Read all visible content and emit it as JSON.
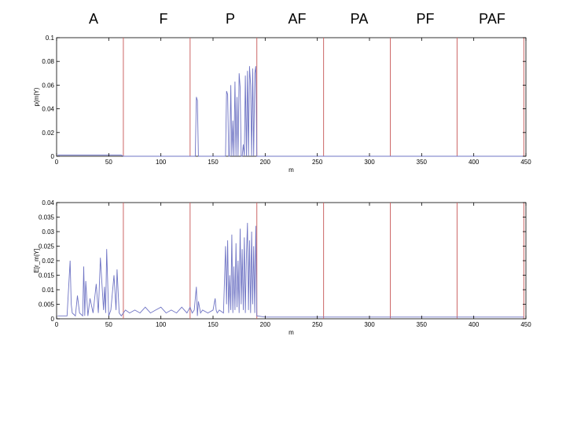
{
  "group_labels": [
    "A",
    "F",
    "P",
    "AF",
    "PA",
    "PF",
    "PAF"
  ],
  "chart_data": [
    {
      "type": "line",
      "xlabel": "m",
      "ylabel": "p(m|Y)",
      "xlim": [
        0,
        450
      ],
      "ylim": [
        0,
        0.1
      ],
      "xticks": [
        0,
        50,
        100,
        150,
        200,
        250,
        300,
        350,
        400,
        450
      ],
      "yticks": [
        0,
        0.02,
        0.04,
        0.06,
        0.08,
        0.1
      ],
      "ytick_labels": [
        "0",
        "0.02",
        "0.04",
        "0.06",
        "0.08",
        "0.1"
      ],
      "separators": [
        64,
        128,
        192,
        256,
        320,
        384,
        448
      ],
      "separator_color": "#cc6666",
      "series_color": "#6f74c4",
      "series": [
        {
          "x": [
            1,
            5,
            10,
            15,
            20,
            25,
            30,
            35,
            40,
            45,
            50,
            55,
            60,
            62,
            64,
            70,
            80,
            90,
            100,
            110,
            120,
            128,
            130,
            133,
            134,
            135,
            136,
            137,
            140,
            145,
            150,
            155,
            158,
            160,
            161,
            162,
            163,
            164,
            165,
            166,
            167,
            168,
            169,
            170,
            171,
            172,
            173,
            174,
            175,
            176,
            177,
            178,
            179,
            180,
            181,
            182,
            183,
            184,
            185,
            186,
            187,
            188,
            189,
            190,
            191,
            192,
            200,
            250,
            300,
            350,
            400,
            448
          ],
          "y": [
            0.001,
            0.001,
            0.001,
            0.001,
            0.001,
            0.001,
            0.001,
            0.001,
            0.001,
            0.001,
            0.001,
            0.001,
            0.001,
            0.001,
            0,
            0,
            0,
            0,
            0,
            0,
            0,
            0,
            0,
            0,
            0.05,
            0.047,
            0,
            0,
            0,
            0,
            0,
            0,
            0,
            0,
            0,
            0,
            0.055,
            0.052,
            0,
            0,
            0.06,
            0,
            0.03,
            0,
            0.063,
            0,
            0.05,
            0,
            0.07,
            0.058,
            0,
            0,
            0.01,
            0,
            0.068,
            0,
            0.072,
            0,
            0.076,
            0.06,
            0,
            0.074,
            0,
            0.07,
            0.076,
            0,
            0,
            0,
            0,
            0,
            0,
            0
          ]
        }
      ]
    },
    {
      "type": "line",
      "xlabel": "m",
      "ylabel": "E[r_m|Y]",
      "xlim": [
        0,
        450
      ],
      "ylim": [
        0,
        0.04
      ],
      "xticks": [
        0,
        50,
        100,
        150,
        200,
        250,
        300,
        350,
        400,
        450
      ],
      "yticks": [
        0,
        0.005,
        0.01,
        0.015,
        0.02,
        0.025,
        0.03,
        0.035,
        0.04
      ],
      "ytick_labels": [
        "0",
        "0.005",
        "0.01",
        "0.015",
        "0.02",
        "0.025",
        "0.03",
        "0.035",
        "0.04"
      ],
      "separators": [
        64,
        128,
        192,
        256,
        320,
        384,
        448
      ],
      "separator_color": "#cc6666",
      "series_color": "#6f74c4",
      "series": [
        {
          "x": [
            1,
            5,
            10,
            13,
            14,
            15,
            18,
            20,
            22,
            25,
            26,
            27,
            28,
            30,
            32,
            35,
            38,
            40,
            42,
            45,
            46,
            47,
            48,
            50,
            52,
            55,
            57,
            58,
            60,
            62,
            64,
            66,
            70,
            75,
            80,
            85,
            90,
            95,
            100,
            105,
            110,
            115,
            120,
            125,
            128,
            130,
            132,
            134,
            135,
            136,
            138,
            140,
            145,
            150,
            152,
            153,
            154,
            156,
            160,
            162,
            163,
            164,
            165,
            166,
            167,
            168,
            169,
            170,
            171,
            172,
            173,
            174,
            175,
            176,
            177,
            178,
            179,
            180,
            181,
            182,
            183,
            184,
            185,
            186,
            187,
            188,
            189,
            190,
            191,
            192,
            200,
            250,
            300,
            350,
            400,
            448
          ],
          "y": [
            0.001,
            0.001,
            0.001,
            0.02,
            0.005,
            0.002,
            0.001,
            0.008,
            0.002,
            0.001,
            0.018,
            0.001,
            0.013,
            0.001,
            0.007,
            0.002,
            0.012,
            0.002,
            0.021,
            0.003,
            0.011,
            0.002,
            0.024,
            0.001,
            0.003,
            0.015,
            0.003,
            0.017,
            0.002,
            0.001,
            0.002,
            0.003,
            0.002,
            0.003,
            0.002,
            0.004,
            0.002,
            0.003,
            0.004,
            0.002,
            0.003,
            0.002,
            0.004,
            0.002,
            0.004,
            0.002,
            0.003,
            0.011,
            0.001,
            0.006,
            0.002,
            0.003,
            0.002,
            0.003,
            0.007,
            0.003,
            0.002,
            0.003,
            0.002,
            0.025,
            0.005,
            0.027,
            0.002,
            0.015,
            0.003,
            0.029,
            0.002,
            0.018,
            0.003,
            0.026,
            0.004,
            0.02,
            0.002,
            0.031,
            0.005,
            0.024,
            0.003,
            0.028,
            0.002,
            0.022,
            0.033,
            0.003,
            0.027,
            0.002,
            0.03,
            0.005,
            0.025,
            0.002,
            0.032,
            0.001,
            0.0006,
            0.0006,
            0.0006,
            0.0006,
            0.0006,
            0.0006
          ]
        }
      ]
    }
  ]
}
